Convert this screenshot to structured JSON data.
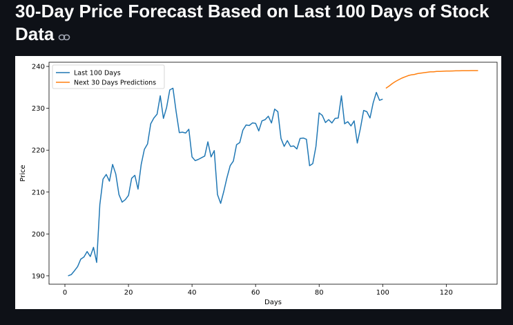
{
  "header": {
    "title": "30-Day Price Forecast Based on Last 100 Days of Stock Data",
    "link_icon": "link-icon"
  },
  "chart_data": {
    "type": "line",
    "title": "",
    "xlabel": "Days",
    "ylabel": "Price",
    "xlim": [
      -5,
      136
    ],
    "ylim": [
      188,
      241
    ],
    "xticks": [
      0,
      20,
      40,
      60,
      80,
      100,
      120
    ],
    "yticks": [
      190,
      200,
      210,
      220,
      230,
      240
    ],
    "grid": false,
    "legend": "top-left",
    "series": [
      {
        "name": "Last 100 Days",
        "color": "#1f77b4",
        "x": [
          1,
          2,
          3,
          4,
          5,
          6,
          7,
          8,
          9,
          10,
          11,
          12,
          13,
          14,
          15,
          16,
          17,
          18,
          19,
          20,
          21,
          22,
          23,
          24,
          25,
          26,
          27,
          28,
          29,
          30,
          31,
          32,
          33,
          34,
          35,
          36,
          37,
          38,
          39,
          40,
          41,
          42,
          43,
          44,
          45,
          46,
          47,
          48,
          49,
          50,
          51,
          52,
          53,
          54,
          55,
          56,
          57,
          58,
          59,
          60,
          61,
          62,
          63,
          64,
          65,
          66,
          67,
          68,
          69,
          70,
          71,
          72,
          73,
          74,
          75,
          76,
          77,
          78,
          79,
          80,
          81,
          82,
          83,
          84,
          85,
          86,
          87,
          88,
          89,
          90,
          91,
          92,
          93,
          94,
          95,
          96,
          97,
          98,
          99,
          100
        ],
        "values": [
          190,
          190.3,
          191.2,
          192.2,
          194,
          194.5,
          195.8,
          194.6,
          196.8,
          193.2,
          207,
          213.1,
          214.2,
          212.6,
          216.6,
          214.3,
          209.4,
          207.6,
          208.2,
          209.2,
          213.3,
          214,
          210.7,
          216.6,
          220.2,
          221.5,
          226.3,
          227.7,
          228.6,
          233,
          227.6,
          230.2,
          234.4,
          234.8,
          229.2,
          224.2,
          224.3,
          224.1,
          225,
          218.4,
          217.5,
          217.8,
          218.2,
          218.6,
          222,
          218.4,
          219.9,
          209.4,
          207.3,
          210.2,
          213.5,
          216.3,
          217.4,
          221.3,
          221.8,
          224.8,
          226,
          225.9,
          226.5,
          226.4,
          224.6,
          227,
          227.3,
          228.1,
          226.5,
          229.8,
          229.2,
          222.8,
          220.9,
          222.3,
          220.9,
          221,
          220.3,
          222.8,
          222.9,
          222.6,
          216.3,
          216.8,
          220.9,
          228.9,
          228.3,
          226.6,
          227.3,
          226.5,
          227.6,
          227.7,
          233,
          226.3,
          226.8,
          225.8,
          227,
          221.7,
          225.3,
          229.5,
          229.2,
          227.7,
          231.3,
          233.8,
          231.9,
          232.2
        ]
      },
      {
        "name": "Next 30 Days Predictions",
        "color": "#ff7f0e",
        "x": [
          101,
          102,
          103,
          104,
          105,
          106,
          107,
          108,
          109,
          110,
          111,
          112,
          113,
          114,
          115,
          116,
          117,
          118,
          119,
          120,
          121,
          122,
          123,
          124,
          125,
          126,
          127,
          128,
          129,
          130
        ],
        "values": [
          234.8,
          235.3,
          235.9,
          236.4,
          236.8,
          237.2,
          237.5,
          237.8,
          238,
          238.1,
          238.3,
          238.4,
          238.5,
          238.6,
          238.7,
          238.7,
          238.8,
          238.8,
          238.85,
          238.9,
          238.9,
          238.92,
          238.95,
          238.95,
          238.97,
          238.98,
          238.98,
          239,
          239,
          239
        ]
      }
    ]
  }
}
